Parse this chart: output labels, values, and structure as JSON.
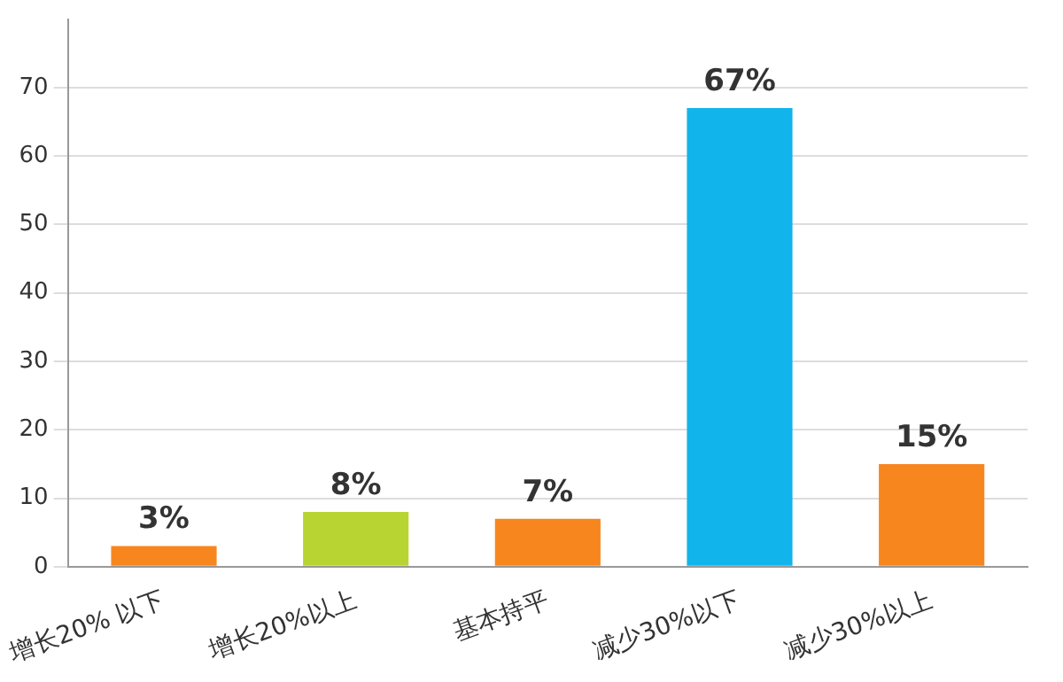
{
  "chart_data": {
    "type": "bar",
    "categories": [
      "增长20% 以下",
      "增长20%以上",
      "基本持平",
      "减少30%以下",
      "减少30%以上"
    ],
    "values": [
      3,
      8,
      7,
      67,
      15
    ],
    "colors": [
      "#f7861f",
      "#b8d432",
      "#f7861f",
      "#12b4ec",
      "#f7861f"
    ],
    "value_labels": [
      "3%",
      "8%",
      "7%",
      "67%",
      "15%"
    ],
    "ylim": [
      0,
      80
    ],
    "yticks": [
      0,
      10,
      20,
      30,
      40,
      50,
      60,
      70
    ],
    "grid": "y"
  }
}
